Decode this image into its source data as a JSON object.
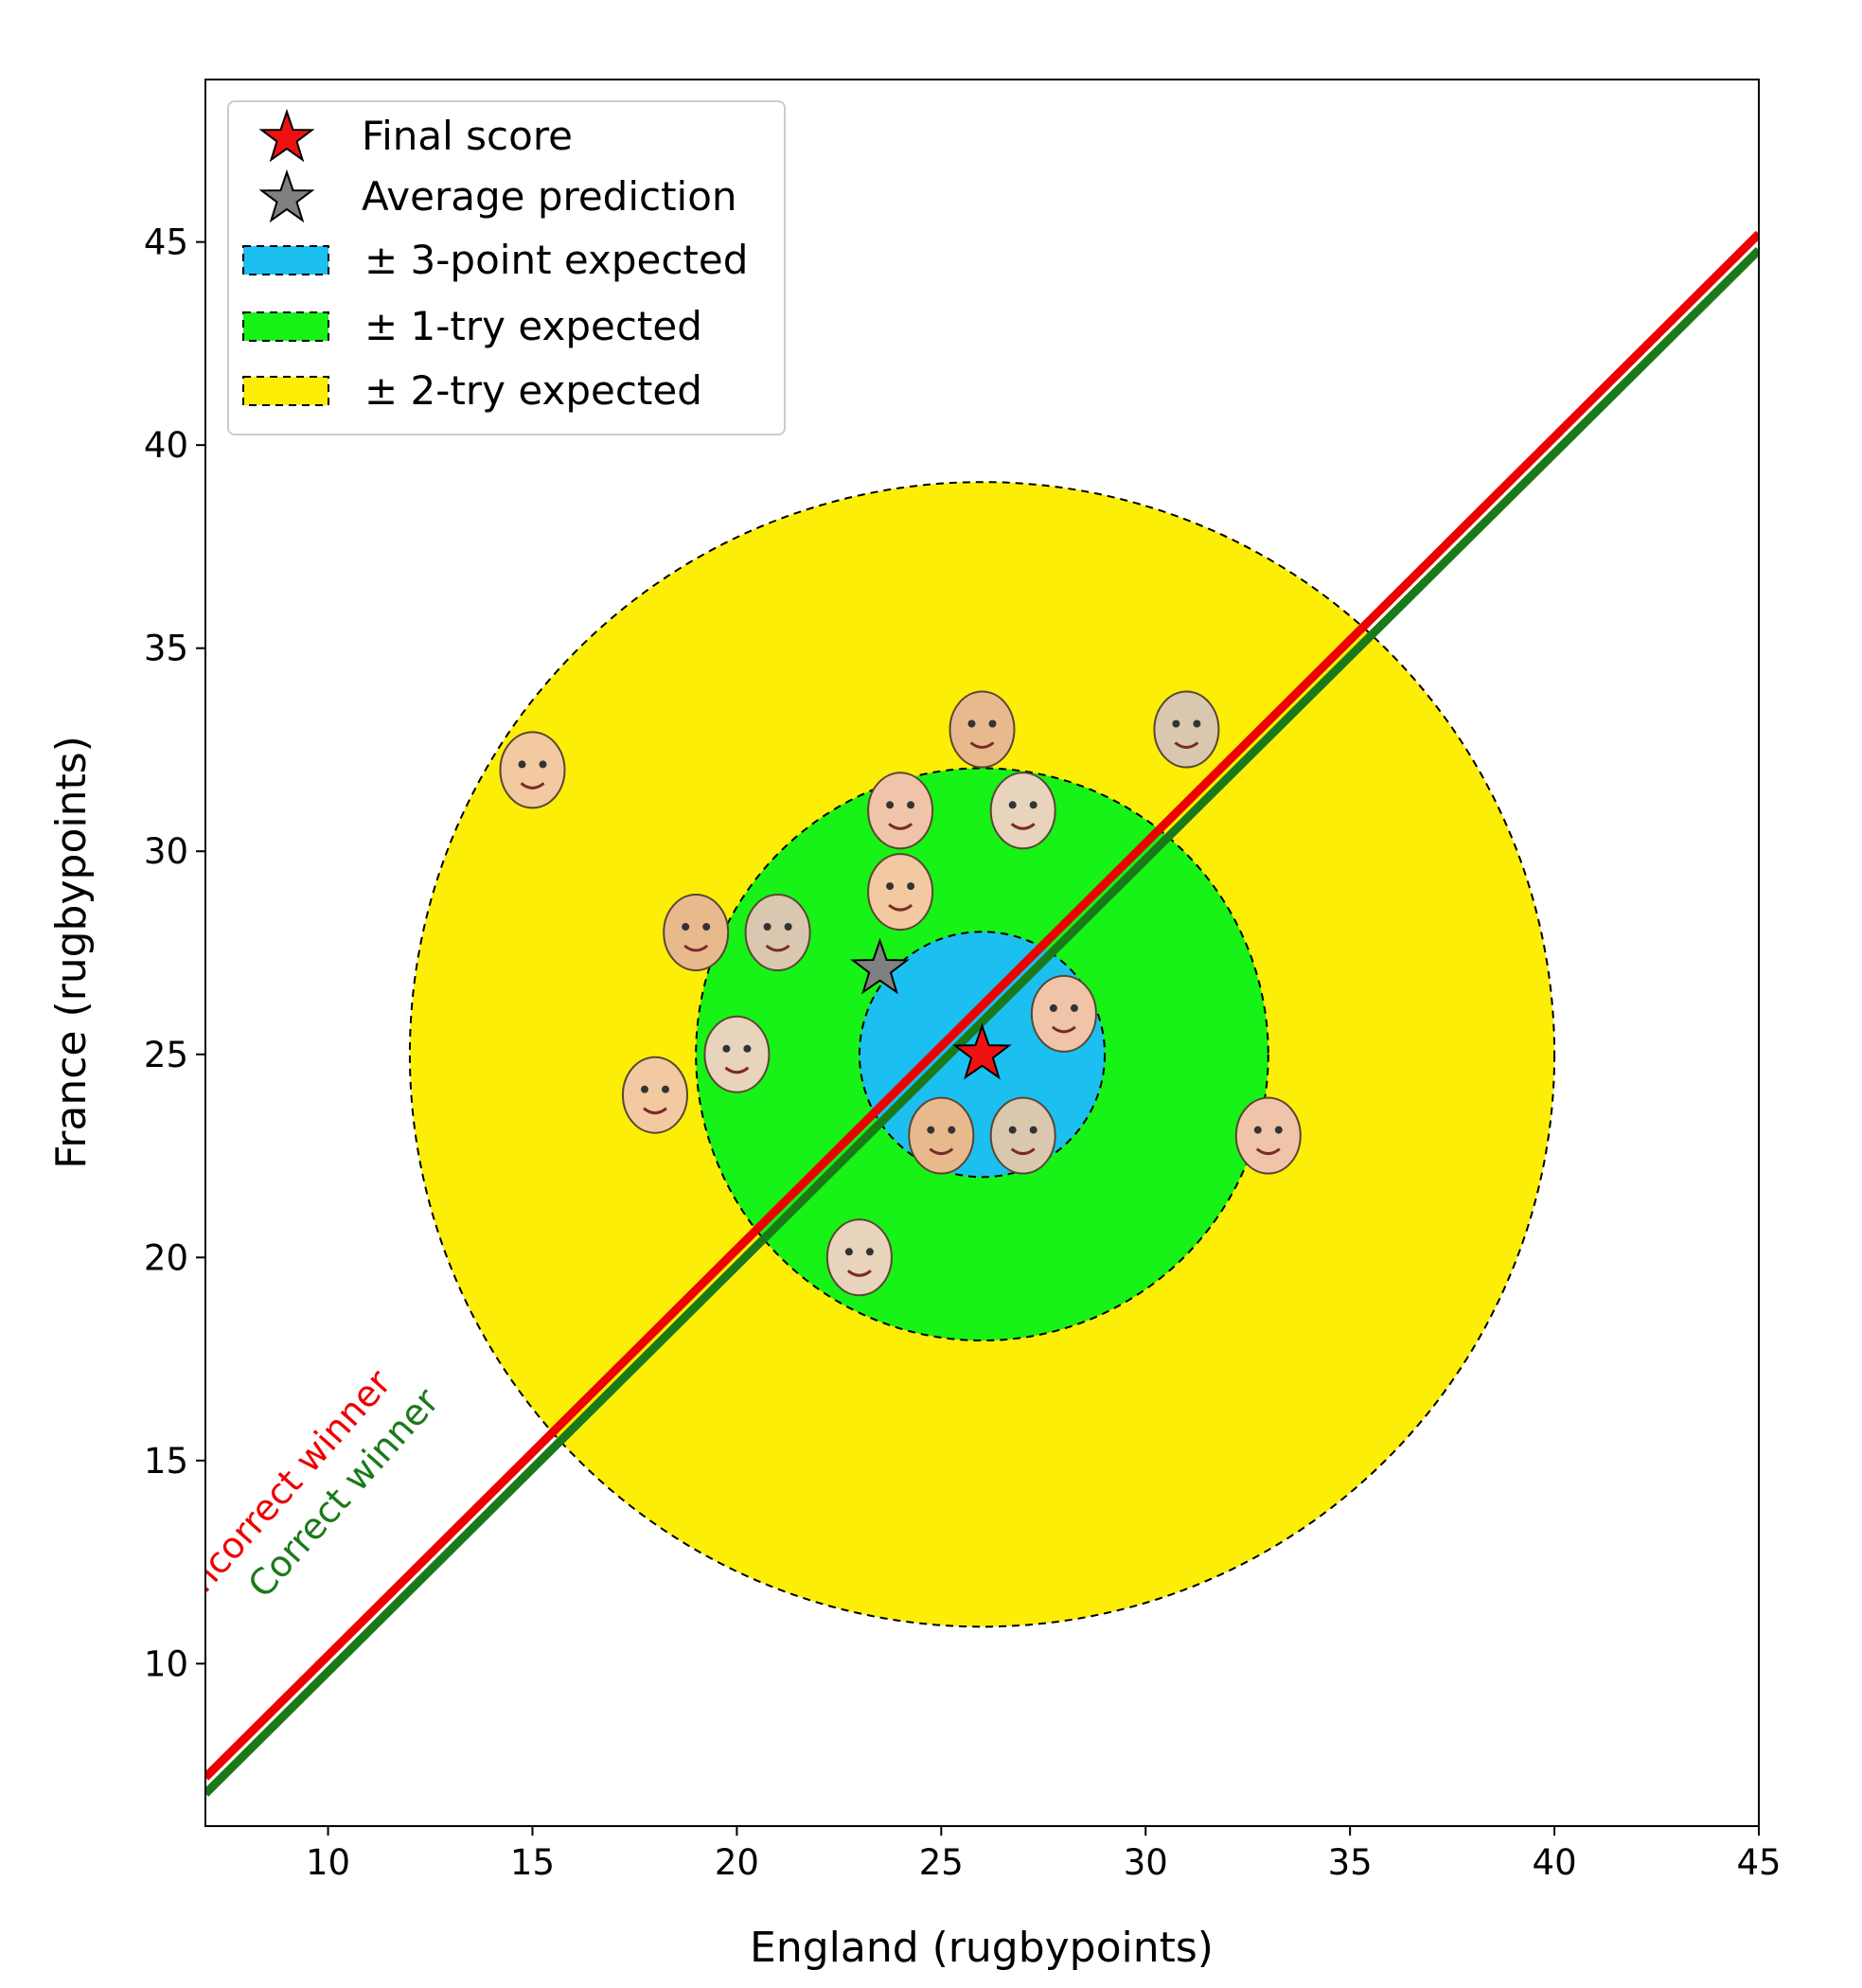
{
  "chart_data": {
    "type": "scatter",
    "xlabel": "England (rugbypoints)",
    "ylabel": "France (rugbypoints)",
    "xlim": [
      7,
      45
    ],
    "ylim": [
      6,
      49
    ],
    "xticks": [
      10,
      15,
      20,
      25,
      30,
      35,
      40,
      45
    ],
    "yticks": [
      10,
      15,
      20,
      25,
      30,
      35,
      40,
      45
    ],
    "grid": false,
    "legend_position": "top-left",
    "legend": [
      {
        "label": "Final score",
        "kind": "star",
        "color": "#ee1111"
      },
      {
        "label": "Average prediction",
        "kind": "star",
        "color": "#808080"
      },
      {
        "label": "± 3-point expected",
        "kind": "patch",
        "color": "#1bbff0"
      },
      {
        "label": "± 1-try expected",
        "kind": "patch",
        "color": "#17f217"
      },
      {
        "label": "± 2-try expected",
        "kind": "patch",
        "color": "#fcee06"
      }
    ],
    "final_score": {
      "x": 26,
      "y": 25
    },
    "average_prediction": {
      "x": 23.5,
      "y": 27.1
    },
    "regions": [
      {
        "name": "± 2-try expected",
        "center": [
          26,
          25
        ],
        "radius": 14,
        "color": "#fcee06"
      },
      {
        "name": "± 1-try expected",
        "center": [
          26,
          25
        ],
        "radius": 7,
        "color": "#17f217"
      },
      {
        "name": "± 3-point expected",
        "center": [
          26,
          25
        ],
        "radius": 3,
        "color": "#1bbff0"
      }
    ],
    "lines": [
      {
        "label": "Incorrect winner",
        "color": "#ee0000",
        "from": [
          7,
          7.2
        ],
        "to": [
          45,
          45.2
        ]
      },
      {
        "label": "Correct winner",
        "color": "#1a7a1a",
        "from": [
          7,
          6.8
        ],
        "to": [
          45,
          44.8
        ]
      }
    ],
    "predictions": [
      {
        "icon": "fire-extinguisher-icon",
        "x": 15,
        "y": 32
      },
      {
        "icon": "person-with-dog-icon",
        "x": 26,
        "y": 33
      },
      {
        "icon": "rugby-ball-2024-icon",
        "x": 31,
        "y": 33
      },
      {
        "icon": "elephant-ears-face-icon",
        "x": 24,
        "y": 31
      },
      {
        "icon": "angel-figure-face-icon",
        "x": 27,
        "y": 31
      },
      {
        "icon": "baby-face-icon",
        "x": 24,
        "y": 29
      },
      {
        "icon": "sheep-face-icon",
        "x": 19,
        "y": 28
      },
      {
        "icon": "bearded-man-face-icon",
        "x": 21,
        "y": 28
      },
      {
        "icon": "potato-head-face-icon",
        "x": 28,
        "y": 26
      },
      {
        "icon": "fridge-face-icon",
        "x": 20,
        "y": 25
      },
      {
        "icon": "chatgpt-logo-icon",
        "x": 18,
        "y": 24
      },
      {
        "icon": "microwave-face-icon",
        "x": 25,
        "y": 23
      },
      {
        "icon": "guinness-pint-face-icon",
        "x": 27,
        "y": 23
      },
      {
        "icon": "truck-face-icon",
        "x": 33,
        "y": 23
      },
      {
        "icon": "dinosaur-face-icon",
        "x": 23,
        "y": 20
      }
    ]
  }
}
